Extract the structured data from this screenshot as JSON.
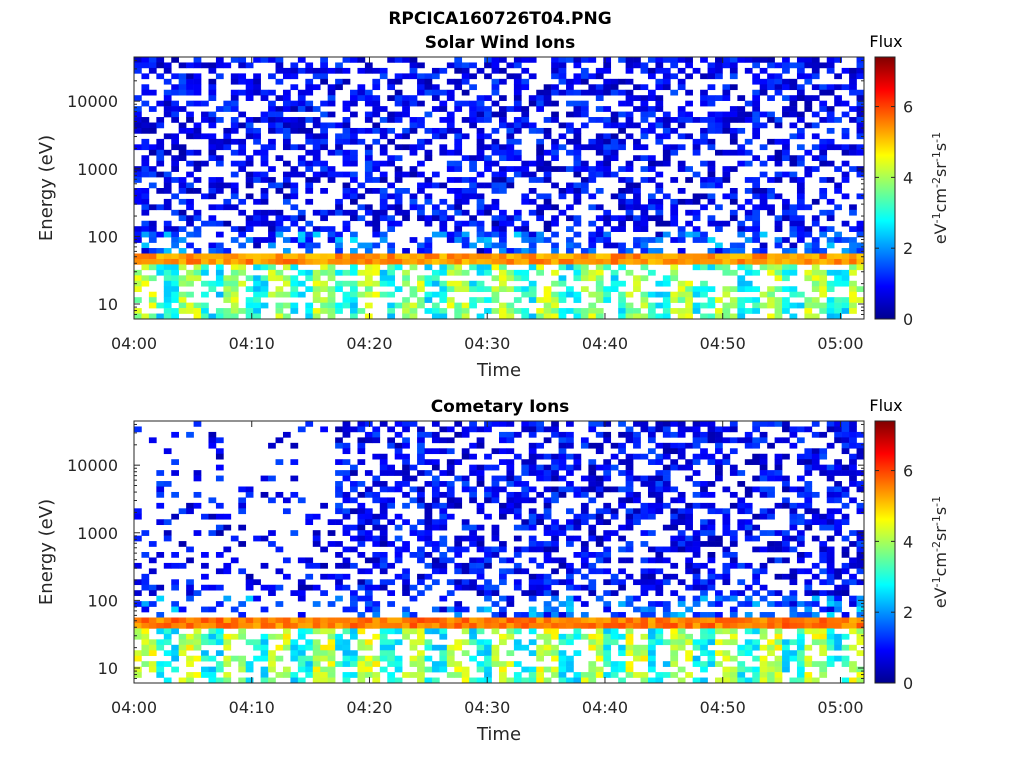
{
  "figure": {
    "title": "RPCICA160726T04.PNG"
  },
  "chart_data": [
    {
      "type": "heatmap",
      "title": "Solar Wind Ions",
      "xlabel": "Time",
      "ylabel": "Energy (eV)",
      "x_ticks": [
        "04:00",
        "04:10",
        "04:20",
        "04:30",
        "04:40",
        "04:50",
        "05:00"
      ],
      "y_ticks": [
        "10",
        "100",
        "1000",
        "10000"
      ],
      "x_range": [
        "04:00",
        "05:02"
      ],
      "y_range": [
        6,
        45000
      ],
      "y_scale": "log",
      "colormap": "jet",
      "colorbar": {
        "title": "Flux",
        "label": "eV-1cm-2sr-1s-1",
        "range": [
          0,
          7.4
        ],
        "ticks": [
          "0",
          "2",
          "4",
          "6"
        ]
      },
      "description_of_values": {
        "band_energy_eV": [
          40,
          55
        ],
        "band_flux": 5.4,
        "low_energy_pulse_flux": 4.0,
        "background_flux_range": [
          0.3,
          1.5
        ]
      }
    },
    {
      "type": "heatmap",
      "title": "Cometary Ions",
      "xlabel": "Time",
      "ylabel": "Energy (eV)",
      "x_ticks": [
        "04:00",
        "04:10",
        "04:20",
        "04:30",
        "04:40",
        "04:50",
        "05:00"
      ],
      "y_ticks": [
        "10",
        "100",
        "1000",
        "10000"
      ],
      "x_range": [
        "04:00",
        "05:02"
      ],
      "y_range": [
        6,
        45000
      ],
      "y_scale": "log",
      "colormap": "jet",
      "colorbar": {
        "title": "Flux",
        "label": "eV-1cm-2sr-1s-1",
        "range": [
          0,
          7.4
        ],
        "ticks": [
          "0",
          "2",
          "4",
          "6"
        ]
      },
      "description_of_values": {
        "band_energy_eV": [
          40,
          55
        ],
        "band_flux": 5.6,
        "low_energy_pulse_flux": 4.2,
        "high_energy_onset": "04:17",
        "background_flux_range": [
          0.3,
          1.5
        ]
      }
    }
  ]
}
